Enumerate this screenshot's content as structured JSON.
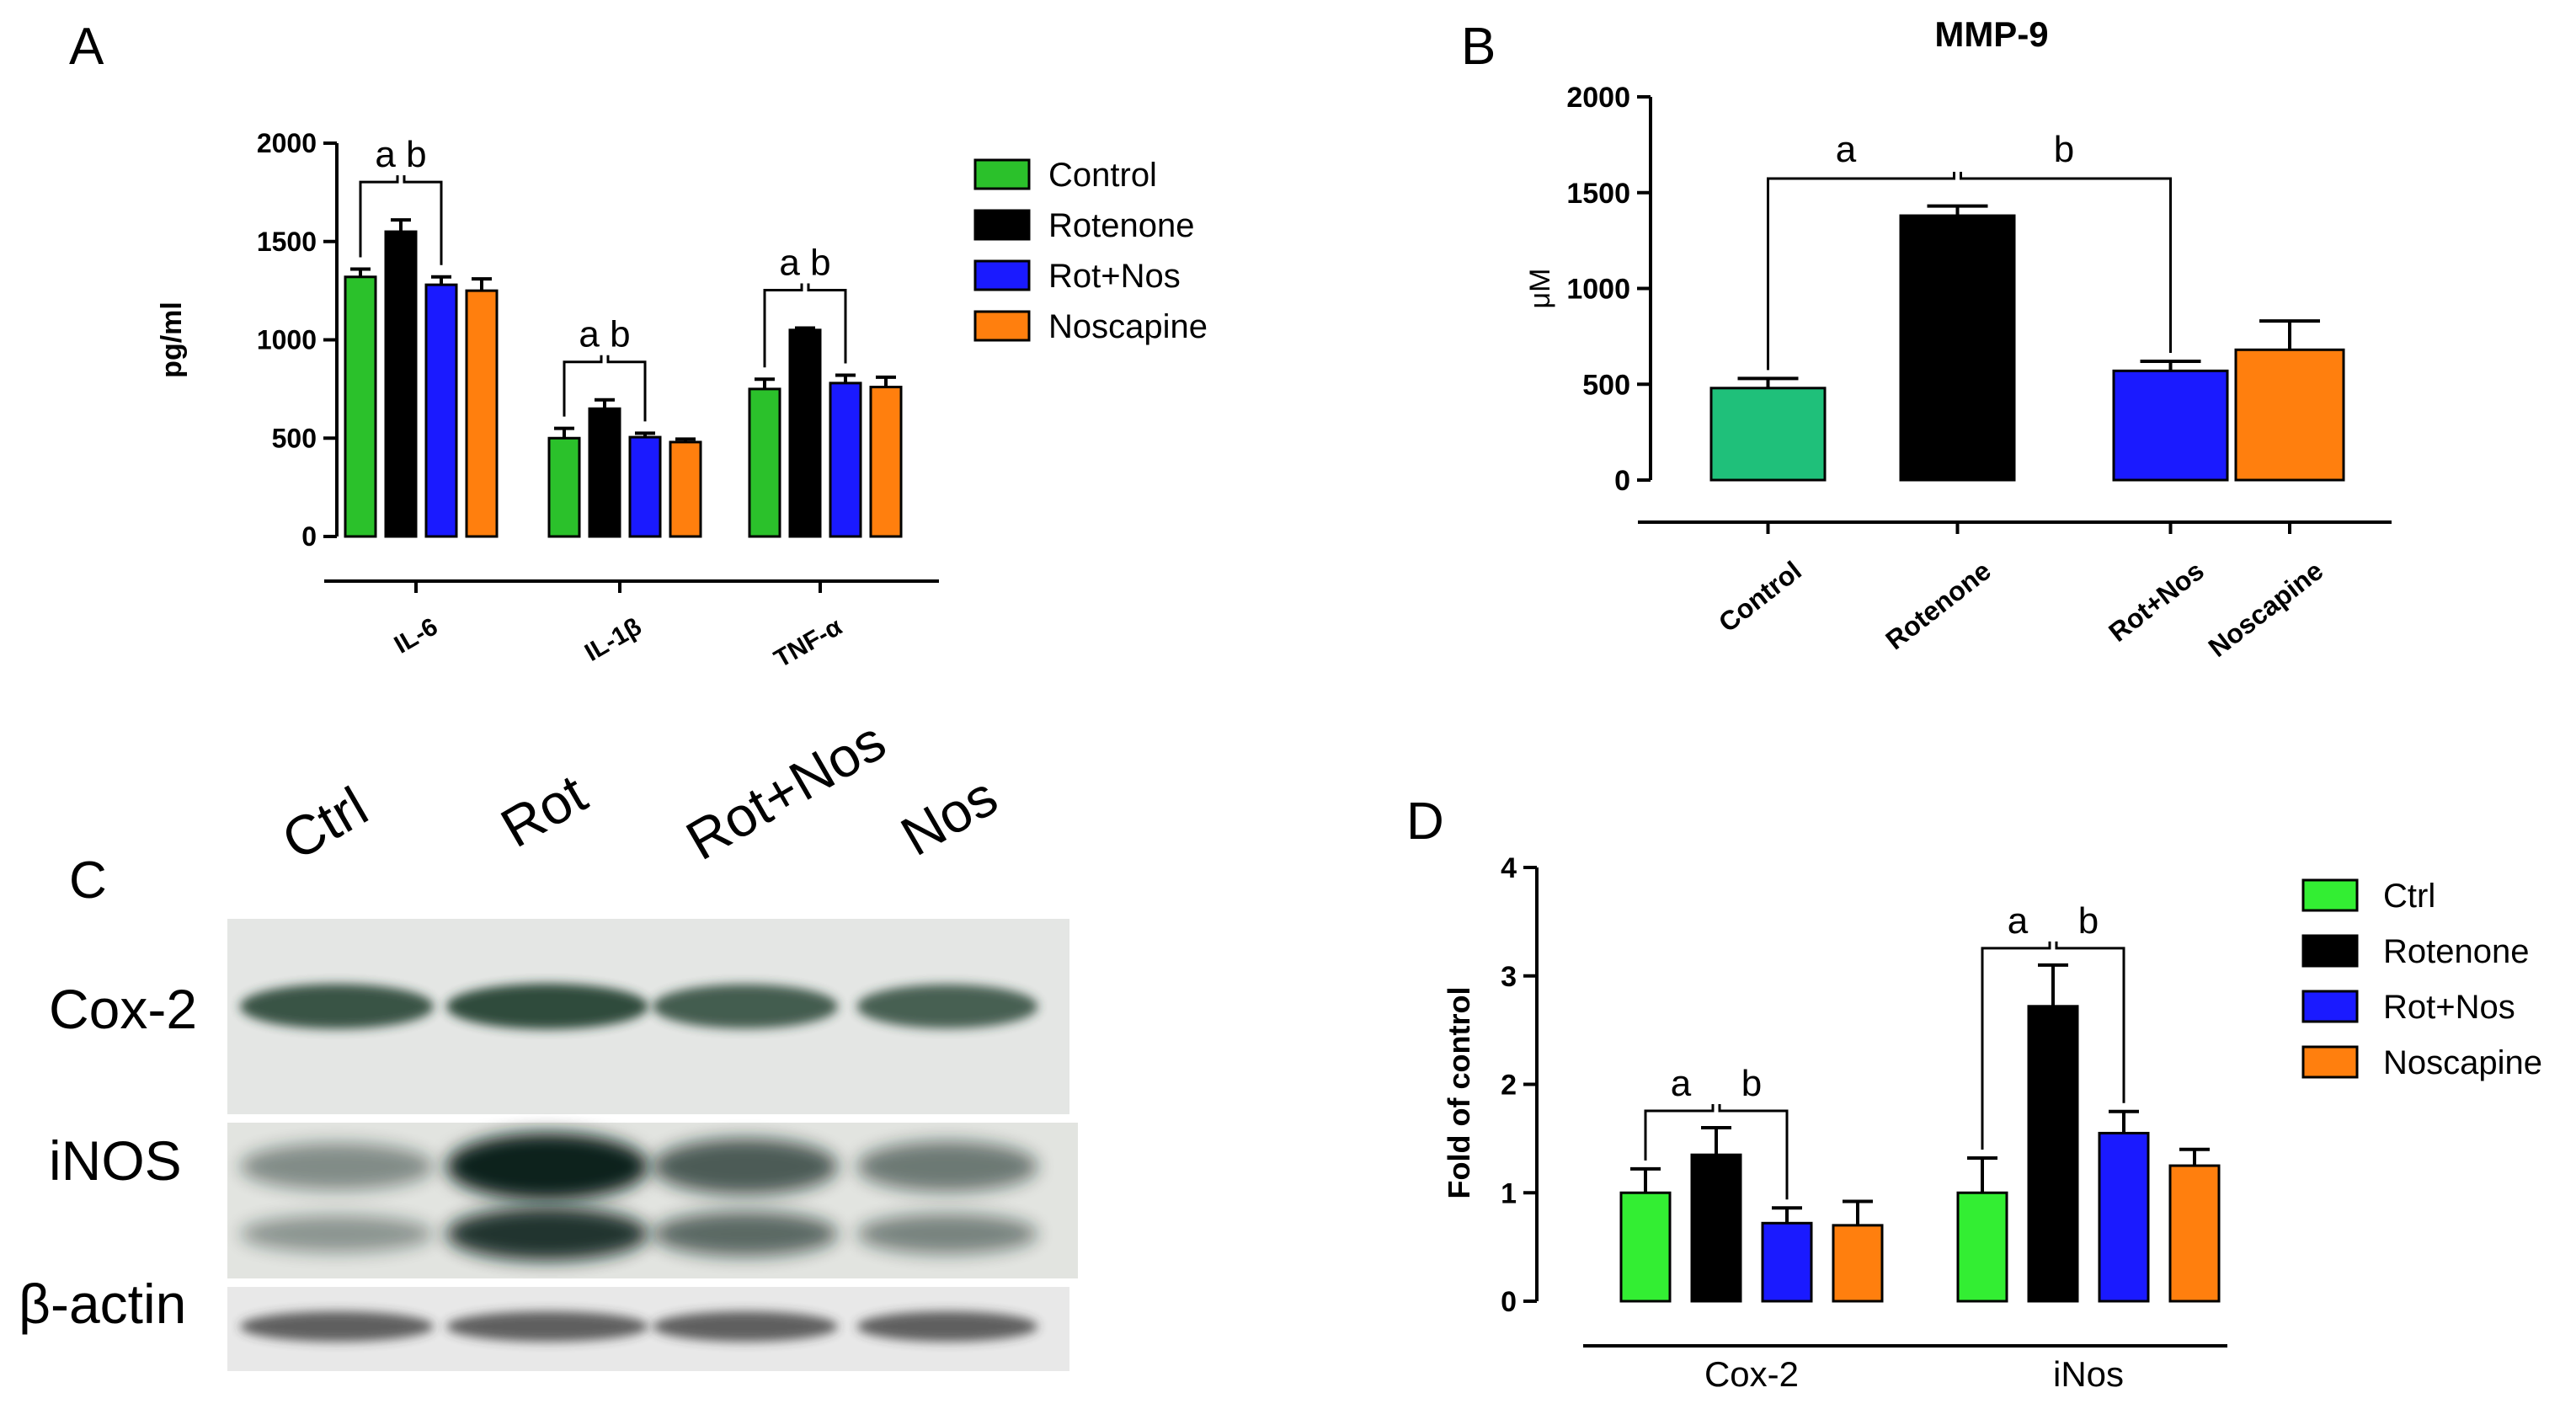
{
  "colors": {
    "control_green": "#2bc12b",
    "rotenone_black": "#000000",
    "rotnos_blue": "#1a1aff",
    "noscapine_orange": "#ff7f0e",
    "mmp9_control_green": "#1fc07a",
    "ctrl_light_green": "#33ee33"
  },
  "chart_data": [
    {
      "panel": "A",
      "type": "bar",
      "title": "",
      "ylabel": "pg/ml",
      "ylim": [
        0,
        2000
      ],
      "yticks": [
        "0",
        "500",
        "1000",
        "1500",
        "2000"
      ],
      "categories": [
        "IL-6",
        "IL-1β",
        "TNF-α"
      ],
      "series": [
        {
          "name": "Control",
          "values": [
            1320,
            500,
            750
          ],
          "errors": [
            40,
            50,
            50
          ]
        },
        {
          "name": "Rotenone",
          "values": [
            1550,
            650,
            1050
          ],
          "errors": [
            60,
            45,
            10
          ]
        },
        {
          "name": "Rot+Nos",
          "values": [
            1280,
            505,
            780
          ],
          "errors": [
            40,
            20,
            40
          ]
        },
        {
          "name": "Noscapine",
          "values": [
            1250,
            480,
            760
          ],
          "errors": [
            60,
            15,
            50
          ]
        }
      ],
      "annotations": [
        {
          "text": "a b",
          "category": "IL-6"
        },
        {
          "text": "a b",
          "category": "IL-1β"
        },
        {
          "text": "a b",
          "category": "TNF-α"
        }
      ],
      "legend_position": "right"
    },
    {
      "panel": "B",
      "type": "bar",
      "title": "MMP-9",
      "ylabel": "μM",
      "ylim": [
        0,
        2000
      ],
      "yticks": [
        "0",
        "500",
        "1000",
        "1500",
        "2000"
      ],
      "categories": [
        "Control",
        "Rotenone",
        "Rot+Nos",
        "Noscapine"
      ],
      "values": [
        480,
        1380,
        570,
        680
      ],
      "errors": [
        50,
        50,
        50,
        150
      ],
      "annotations": [
        {
          "text": "a"
        },
        {
          "text": "b"
        }
      ]
    },
    {
      "panel": "D",
      "type": "bar",
      "title": "",
      "ylabel": "Fold of control",
      "ylim": [
        0,
        4
      ],
      "yticks": [
        "0",
        "1",
        "2",
        "3",
        "4"
      ],
      "categories": [
        "Cox-2",
        "iNos"
      ],
      "series": [
        {
          "name": "Ctrl",
          "values": [
            1.0,
            1.0
          ],
          "errors": [
            0.22,
            0.32
          ]
        },
        {
          "name": "Rotenone",
          "values": [
            1.35,
            2.72
          ],
          "errors": [
            0.25,
            0.38
          ]
        },
        {
          "name": "Rot+Nos",
          "values": [
            0.72,
            1.55
          ],
          "errors": [
            0.14,
            0.2
          ]
        },
        {
          "name": "Noscapine",
          "values": [
            0.7,
            1.25
          ],
          "errors": [
            0.22,
            0.15
          ]
        }
      ],
      "annotations": [
        {
          "text": "a",
          "category": "Cox-2"
        },
        {
          "text": "b",
          "category": "Cox-2"
        },
        {
          "text": "a",
          "category": "iNos"
        },
        {
          "text": "b",
          "category": "iNos"
        }
      ],
      "legend_position": "right"
    }
  ],
  "panel_labels": {
    "a": "A",
    "b": "B",
    "c": "C",
    "d": "D"
  },
  "blot": {
    "lanes": [
      "Ctrl",
      "Rot",
      "Rot+Nos",
      "Nos"
    ],
    "rows": [
      "Cox-2",
      "iNOS",
      "β-actin"
    ],
    "intensity": {
      "cox2": [
        0.85,
        0.9,
        0.8,
        0.78
      ],
      "inos": [
        0.45,
        1.0,
        0.7,
        0.55
      ],
      "actin": [
        0.75,
        0.75,
        0.75,
        0.75
      ]
    }
  }
}
